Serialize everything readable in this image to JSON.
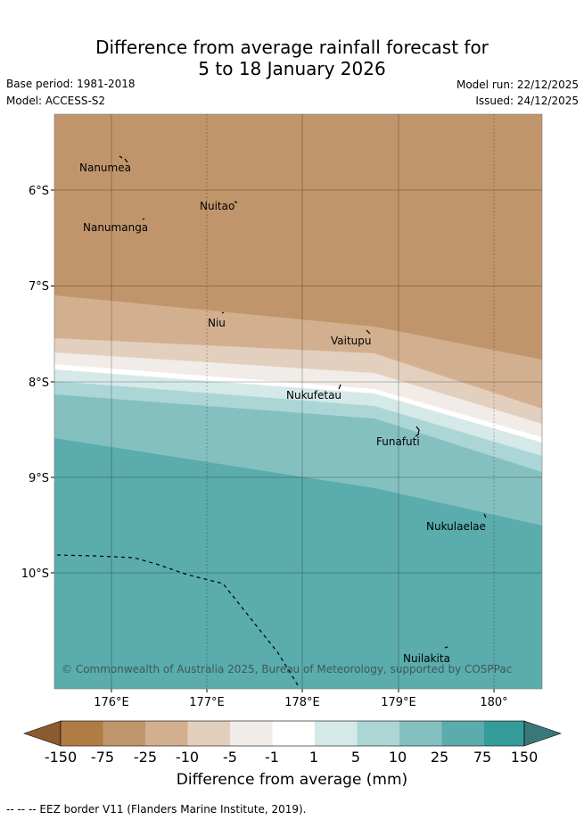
{
  "title": {
    "line1": "Difference from average rainfall forecast for",
    "line2": "5 to 18 January 2026"
  },
  "meta": {
    "base_period": "Base period: 1981-2018",
    "model": "Model: ACCESS-S2",
    "model_run": "Model run: 22/12/2025",
    "issued": "Issued: 24/12/2025"
  },
  "map": {
    "lat_labels": [
      "6°S",
      "7°S",
      "8°S",
      "9°S",
      "10°S"
    ],
    "lon_labels": [
      "176°E",
      "177°E",
      "178°E",
      "179°E",
      "180°"
    ],
    "places": [
      "Nanumea",
      "Nuitao",
      "Nanumanga",
      "Niu",
      "Vaitupu",
      "Nukufetau",
      "Funafuti",
      "Nukulaelae",
      "Nuilakita"
    ],
    "credit": "© Commonwealth of Australia 2025, Bureau of Meteorology, supported by COSPPac"
  },
  "legend": {
    "title": "Difference from average (mm)",
    "ticks": [
      "-150",
      "-75",
      "-25",
      "-10",
      "-5",
      "-1",
      "1",
      "5",
      "10",
      "25",
      "75",
      "150"
    ],
    "colors": {
      "lt_neg150": "#8c5a2e",
      "neg150_neg75": "#b07c45",
      "neg75_neg25": "#c1956b",
      "neg25_neg10": "#d2b08f",
      "neg10_neg5": "#e3cfbd",
      "neg5_neg1": "#f1ece7",
      "neg1_1": "#ffffff",
      "p1_5": "#d5e9e8",
      "p5_10": "#acd6d6",
      "p10_25": "#85c0c0",
      "p25_75": "#5bacac",
      "p75_150": "#359b9b",
      "gt_150": "#3a7878"
    }
  },
  "footnote": "-- -- -- EEZ border V11 (Flanders Marine Institute, 2019)."
}
